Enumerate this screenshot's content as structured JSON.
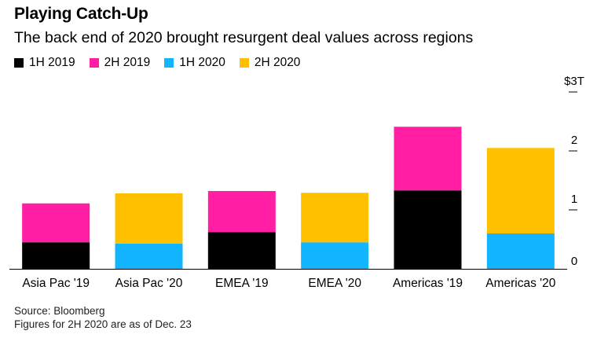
{
  "title": "Playing Catch-Up",
  "subtitle": "The back end of 2020 brought resurgent deal values across regions",
  "chart_data": {
    "type": "bar",
    "stacked": true,
    "categories": [
      "Asia Pac '19",
      "Asia Pac '20",
      "EMEA '19",
      "EMEA '20",
      "Americas '19",
      "Americas '20"
    ],
    "series": [
      {
        "name": "1H 2019",
        "color": "#000000",
        "values": [
          0.45,
          0,
          0.62,
          0,
          1.33,
          0
        ]
      },
      {
        "name": "2H 2019",
        "color": "#ff1ea4",
        "values": [
          0.66,
          0,
          0.7,
          0,
          1.08,
          0
        ]
      },
      {
        "name": "1H 2020",
        "color": "#14b5ff",
        "values": [
          0,
          0.43,
          0,
          0.45,
          0,
          0.6
        ]
      },
      {
        "name": "2H 2020",
        "color": "#ffc000",
        "values": [
          0,
          0.85,
          0,
          0.84,
          0,
          1.45
        ]
      }
    ],
    "ylim": [
      0,
      3
    ],
    "yticks": [
      0,
      1,
      2,
      3
    ],
    "ytick_labels": [
      "0",
      "1",
      "2",
      "$3T"
    ],
    "xlabel": "",
    "ylabel": "",
    "legend_position": "top-left"
  },
  "footer": {
    "source": "Source: Bloomberg",
    "note": "Figures for 2H 2020 are as of Dec. 23"
  }
}
